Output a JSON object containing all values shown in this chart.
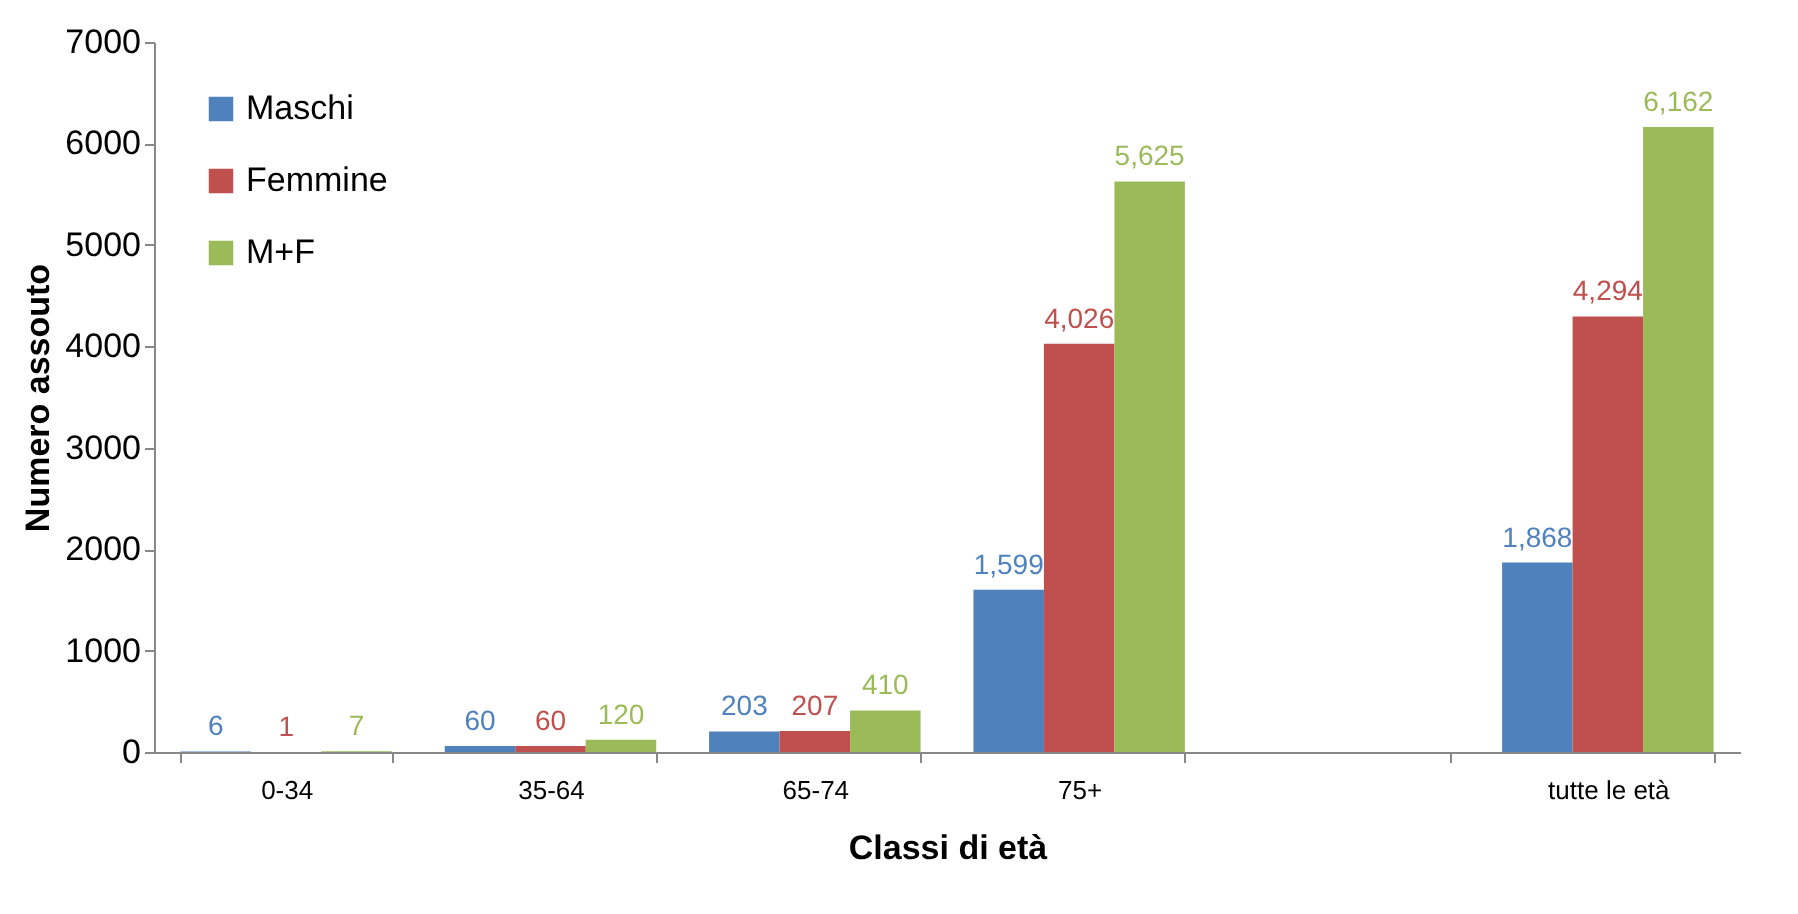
{
  "chart_data": {
    "type": "bar",
    "xlabel": "Classi di età",
    "ylabel": "Numero assouto",
    "categories": [
      "0-34",
      "35-64",
      "65-74",
      "75+",
      null,
      "tutte le età"
    ],
    "series": [
      {
        "name": "Maschi",
        "color": "#4f81bd",
        "values": [
          6,
          60,
          203,
          1599,
          null,
          1868
        ],
        "value_labels": [
          "6",
          "60",
          "203",
          "1,599",
          null,
          "1,868"
        ]
      },
      {
        "name": "Femmine",
        "color": "#c0504d",
        "values": [
          1,
          60,
          207,
          4026,
          null,
          4294
        ],
        "value_labels": [
          "1",
          "60",
          "207",
          "4,026",
          null,
          "4,294"
        ]
      },
      {
        "name": "M+F",
        "color": "#9bbb59",
        "values": [
          7,
          120,
          410,
          5625,
          null,
          6162
        ],
        "value_labels": [
          "7",
          "120",
          "410",
          "5,625",
          null,
          "6,162"
        ]
      }
    ],
    "ylim": [
      0,
      7000
    ],
    "yticks": [
      0,
      1000,
      2000,
      3000,
      4000,
      5000,
      6000,
      7000
    ],
    "grid": false,
    "legend": "top left"
  }
}
